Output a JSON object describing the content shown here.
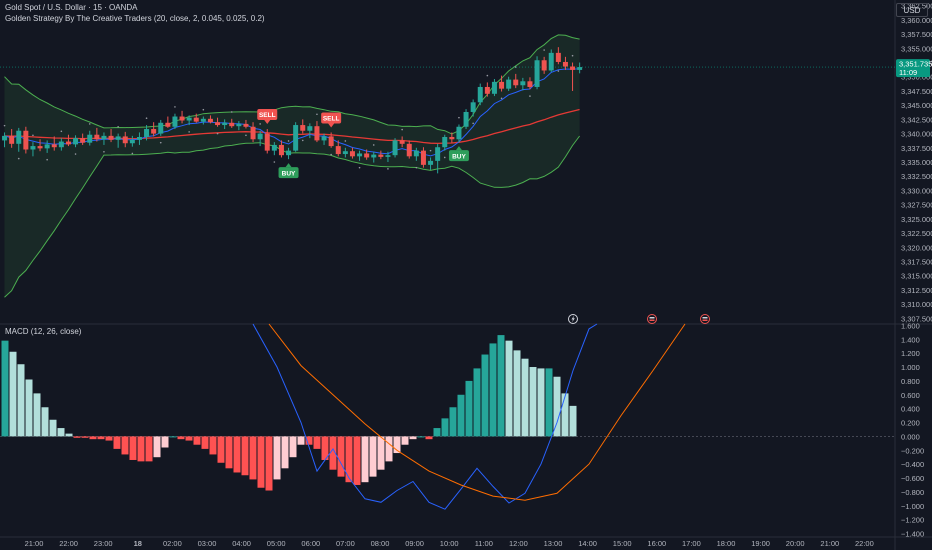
{
  "header": {
    "symbol_title": "Gold Spot / U.S. Dollar · 15 · OANDA",
    "indicator_title": "Golden Strategy By The Creative Traders (20, close, 2, 0.045, 0.025, 0.2)",
    "currency": "USD",
    "macd_title": "MACD (12, 26, close)"
  },
  "colors": {
    "background": "#131722",
    "bull": "#26a69a",
    "bear": "#ef5350",
    "macd_hist_up_strong": "#26a69a",
    "macd_hist_up_weak": "#b2dfdb",
    "macd_hist_down_strong": "#ff5252",
    "macd_hist_down_weak": "#ffcdd2",
    "macd_line": "#2962ff",
    "signal_line": "#ff6d00",
    "band": "#4caf50",
    "price_tag": "#089981"
  },
  "chart_data": [
    {
      "type": "candlestick",
      "title": "Gold Spot / U.S. Dollar · 15 · OANDA",
      "y_ticks": [
        "3,362.500",
        "3,360.000",
        "3,357.500",
        "3,355.000",
        "3,352.500",
        "3,350.000",
        "3,347.500",
        "3,345.000",
        "3,342.500",
        "3,340.000",
        "3,337.500",
        "3,335.000",
        "3,332.500",
        "3,330.000",
        "3,327.500",
        "3,325.000",
        "3,322.500",
        "3,320.000",
        "3,317.500",
        "3,315.000",
        "3,312.500",
        "3,310.000",
        "3,307.500"
      ],
      "ylim": [
        3306.5,
        3363.5
      ],
      "x_ticks": [
        "21:00",
        "22:00",
        "23:00",
        "18",
        "02:00",
        "03:00",
        "04:00",
        "05:00",
        "06:00",
        "07:00",
        "08:00",
        "09:00",
        "10:00",
        "11:00",
        "12:00",
        "13:00",
        "14:00",
        "15:00",
        "16:00",
        "17:00",
        "18:00",
        "19:00",
        "20:00",
        "21:00",
        "22:00"
      ],
      "last_price": "3,351.735",
      "countdown": "11:09",
      "signals": [
        {
          "label": "SELL",
          "bar": 37
        },
        {
          "label": "SELL",
          "bar": 46
        },
        {
          "label": "BUY",
          "bar": 40
        },
        {
          "label": "BUY",
          "bar": 64
        }
      ],
      "candles": [
        {
          "o": 3338.8,
          "h": 3340.2,
          "l": 3337.6,
          "c": 3339.6
        },
        {
          "o": 3339.6,
          "h": 3340.8,
          "l": 3337.5,
          "c": 3338.2
        },
        {
          "o": 3338.2,
          "h": 3341.0,
          "l": 3336.8,
          "c": 3340.5
        },
        {
          "o": 3340.5,
          "h": 3341.2,
          "l": 3336.5,
          "c": 3337.2
        },
        {
          "o": 3337.2,
          "h": 3338.5,
          "l": 3336.0,
          "c": 3337.8
        },
        {
          "o": 3337.8,
          "h": 3339.0,
          "l": 3336.9,
          "c": 3337.4
        },
        {
          "o": 3337.4,
          "h": 3338.8,
          "l": 3336.6,
          "c": 3338.1
        },
        {
          "o": 3338.1,
          "h": 3339.5,
          "l": 3337.0,
          "c": 3337.6
        },
        {
          "o": 3337.6,
          "h": 3339.2,
          "l": 3337.0,
          "c": 3338.6
        },
        {
          "o": 3338.6,
          "h": 3339.8,
          "l": 3337.8,
          "c": 3338.1
        },
        {
          "o": 3338.1,
          "h": 3339.7,
          "l": 3337.6,
          "c": 3339.2
        },
        {
          "o": 3339.2,
          "h": 3340.0,
          "l": 3338.0,
          "c": 3338.4
        },
        {
          "o": 3338.4,
          "h": 3340.5,
          "l": 3337.9,
          "c": 3339.8
        },
        {
          "o": 3339.8,
          "h": 3341.0,
          "l": 3338.6,
          "c": 3339.0
        },
        {
          "o": 3339.0,
          "h": 3340.2,
          "l": 3338.0,
          "c": 3339.6
        },
        {
          "o": 3339.6,
          "h": 3340.8,
          "l": 3338.5,
          "c": 3338.9
        },
        {
          "o": 3338.9,
          "h": 3340.0,
          "l": 3337.5,
          "c": 3339.5
        },
        {
          "o": 3339.5,
          "h": 3340.3,
          "l": 3337.6,
          "c": 3338.3
        },
        {
          "o": 3338.3,
          "h": 3339.6,
          "l": 3337.7,
          "c": 3338.9
        },
        {
          "o": 3338.9,
          "h": 3340.2,
          "l": 3338.0,
          "c": 3339.4
        },
        {
          "o": 3339.4,
          "h": 3341.5,
          "l": 3338.8,
          "c": 3340.8
        },
        {
          "o": 3340.8,
          "h": 3342.0,
          "l": 3339.5,
          "c": 3340.0
        },
        {
          "o": 3340.0,
          "h": 3342.4,
          "l": 3339.6,
          "c": 3341.9
        },
        {
          "o": 3341.9,
          "h": 3343.0,
          "l": 3341.0,
          "c": 3341.2
        },
        {
          "o": 3341.2,
          "h": 3343.5,
          "l": 3340.8,
          "c": 3343.0
        },
        {
          "o": 3343.0,
          "h": 3344.0,
          "l": 3341.8,
          "c": 3342.3
        },
        {
          "o": 3342.3,
          "h": 3343.2,
          "l": 3341.5,
          "c": 3342.8
        },
        {
          "o": 3342.8,
          "h": 3343.5,
          "l": 3341.9,
          "c": 3342.1
        },
        {
          "o": 3342.1,
          "h": 3343.0,
          "l": 3341.6,
          "c": 3342.6
        },
        {
          "o": 3342.6,
          "h": 3343.2,
          "l": 3341.8,
          "c": 3342.0
        },
        {
          "o": 3342.0,
          "h": 3342.8,
          "l": 3341.2,
          "c": 3341.5
        },
        {
          "o": 3341.5,
          "h": 3342.5,
          "l": 3340.8,
          "c": 3341.9
        },
        {
          "o": 3341.9,
          "h": 3342.6,
          "l": 3341.0,
          "c": 3341.3
        },
        {
          "o": 3341.3,
          "h": 3342.2,
          "l": 3340.6,
          "c": 3341.7
        },
        {
          "o": 3341.7,
          "h": 3342.4,
          "l": 3340.9,
          "c": 3341.2
        },
        {
          "o": 3341.2,
          "h": 3342.0,
          "l": 3338.5,
          "c": 3339.0
        },
        {
          "o": 3339.0,
          "h": 3340.5,
          "l": 3337.8,
          "c": 3340.0
        },
        {
          "o": 3340.0,
          "h": 3340.8,
          "l": 3336.5,
          "c": 3337.0
        },
        {
          "o": 3337.0,
          "h": 3338.5,
          "l": 3336.2,
          "c": 3338.0
        },
        {
          "o": 3338.0,
          "h": 3338.8,
          "l": 3335.8,
          "c": 3336.2
        },
        {
          "o": 3336.2,
          "h": 3337.5,
          "l": 3335.5,
          "c": 3337.0
        },
        {
          "o": 3337.0,
          "h": 3342.0,
          "l": 3336.8,
          "c": 3341.5
        },
        {
          "o": 3341.5,
          "h": 3342.5,
          "l": 3340.0,
          "c": 3340.5
        },
        {
          "o": 3340.5,
          "h": 3341.8,
          "l": 3339.2,
          "c": 3341.3
        },
        {
          "o": 3341.3,
          "h": 3342.2,
          "l": 3338.5,
          "c": 3338.8
        },
        {
          "o": 3338.8,
          "h": 3340.0,
          "l": 3338.0,
          "c": 3339.5
        },
        {
          "o": 3339.5,
          "h": 3340.2,
          "l": 3337.5,
          "c": 3337.8
        },
        {
          "o": 3337.8,
          "h": 3338.8,
          "l": 3336.0,
          "c": 3336.4
        },
        {
          "o": 3336.4,
          "h": 3337.5,
          "l": 3335.8,
          "c": 3336.9
        },
        {
          "o": 3336.9,
          "h": 3337.5,
          "l": 3335.6,
          "c": 3336.0
        },
        {
          "o": 3336.0,
          "h": 3337.0,
          "l": 3335.2,
          "c": 3336.5
        },
        {
          "o": 3336.5,
          "h": 3337.2,
          "l": 3335.4,
          "c": 3335.8
        },
        {
          "o": 3335.8,
          "h": 3336.8,
          "l": 3334.9,
          "c": 3336.3
        },
        {
          "o": 3336.3,
          "h": 3337.0,
          "l": 3335.5,
          "c": 3335.9
        },
        {
          "o": 3335.9,
          "h": 3336.8,
          "l": 3335.0,
          "c": 3336.2
        },
        {
          "o": 3336.2,
          "h": 3339.2,
          "l": 3335.8,
          "c": 3338.8
        },
        {
          "o": 3338.8,
          "h": 3339.5,
          "l": 3337.6,
          "c": 3338.2
        },
        {
          "o": 3338.2,
          "h": 3338.8,
          "l": 3335.6,
          "c": 3336.0
        },
        {
          "o": 3336.0,
          "h": 3337.5,
          "l": 3335.2,
          "c": 3337.0
        },
        {
          "o": 3337.0,
          "h": 3337.6,
          "l": 3334.0,
          "c": 3334.5
        },
        {
          "o": 3334.5,
          "h": 3335.8,
          "l": 3333.6,
          "c": 3335.2
        },
        {
          "o": 3335.2,
          "h": 3338.2,
          "l": 3333.0,
          "c": 3337.6
        },
        {
          "o": 3337.6,
          "h": 3339.8,
          "l": 3337.0,
          "c": 3339.4
        },
        {
          "o": 3339.4,
          "h": 3340.2,
          "l": 3338.4,
          "c": 3339.0
        },
        {
          "o": 3339.0,
          "h": 3341.6,
          "l": 3338.5,
          "c": 3341.2
        },
        {
          "o": 3341.2,
          "h": 3344.3,
          "l": 3340.8,
          "c": 3343.8
        },
        {
          "o": 3343.8,
          "h": 3346.0,
          "l": 3343.0,
          "c": 3345.5
        },
        {
          "o": 3345.5,
          "h": 3348.8,
          "l": 3345.0,
          "c": 3348.2
        },
        {
          "o": 3348.2,
          "h": 3349.0,
          "l": 3346.5,
          "c": 3347.0
        },
        {
          "o": 3347.0,
          "h": 3349.6,
          "l": 3346.6,
          "c": 3349.1
        },
        {
          "o": 3349.1,
          "h": 3350.2,
          "l": 3347.4,
          "c": 3347.9
        },
        {
          "o": 3347.9,
          "h": 3350.0,
          "l": 3347.5,
          "c": 3349.5
        },
        {
          "o": 3349.5,
          "h": 3350.5,
          "l": 3348.0,
          "c": 3348.5
        },
        {
          "o": 3348.5,
          "h": 3349.8,
          "l": 3347.6,
          "c": 3349.2
        },
        {
          "o": 3349.2,
          "h": 3349.9,
          "l": 3347.8,
          "c": 3348.2
        },
        {
          "o": 3348.2,
          "h": 3353.6,
          "l": 3347.8,
          "c": 3352.9
        },
        {
          "o": 3352.9,
          "h": 3353.5,
          "l": 3350.5,
          "c": 3351.1
        },
        {
          "o": 3351.1,
          "h": 3354.8,
          "l": 3350.8,
          "c": 3354.2
        },
        {
          "o": 3354.2,
          "h": 3355.2,
          "l": 3352.2,
          "c": 3352.6
        },
        {
          "o": 3352.6,
          "h": 3353.5,
          "l": 3351.2,
          "c": 3351.8
        },
        {
          "o": 3351.8,
          "h": 3352.5,
          "l": 3347.5,
          "c": 3351.2
        },
        {
          "o": 3351.2,
          "h": 3352.5,
          "l": 3350.6,
          "c": 3351.7
        }
      ]
    },
    {
      "type": "bar",
      "title": "MACD (12, 26, close)",
      "y_ticks": [
        "1.600",
        "1.400",
        "1.200",
        "1.000",
        "0.800",
        "0.600",
        "0.400",
        "0.200",
        "0.000",
        "−0.200",
        "−0.400",
        "−0.600",
        "−0.800",
        "−1.000",
        "−1.200",
        "−1.400"
      ],
      "ylim": [
        -1.45,
        1.62
      ],
      "histogram": [
        1.38,
        1.22,
        1.04,
        0.82,
        0.62,
        0.42,
        0.24,
        0.12,
        0.04,
        -0.02,
        -0.02,
        -0.04,
        -0.04,
        -0.06,
        -0.18,
        -0.26,
        -0.34,
        -0.36,
        -0.36,
        -0.3,
        -0.16,
        0.0,
        -0.04,
        -0.06,
        -0.12,
        -0.18,
        -0.26,
        -0.38,
        -0.46,
        -0.52,
        -0.56,
        -0.62,
        -0.74,
        -0.78,
        -0.62,
        -0.46,
        -0.3,
        -0.12,
        -0.12,
        -0.18,
        -0.34,
        -0.48,
        -0.58,
        -0.66,
        -0.7,
        -0.66,
        -0.58,
        -0.48,
        -0.36,
        -0.24,
        -0.12,
        -0.04,
        0.0,
        -0.04,
        0.12,
        0.26,
        0.42,
        0.6,
        0.8,
        0.98,
        1.18,
        1.34,
        1.46,
        1.38,
        1.24,
        1.12,
        1.0,
        0.98,
        0.98,
        0.86,
        0.62,
        0.44
      ],
      "macd_line": [
        [
          31,
          1.62
        ],
        [
          34,
          1.0
        ],
        [
          37,
          0.2
        ],
        [
          39,
          -0.5
        ],
        [
          41,
          -0.18
        ],
        [
          43,
          -0.6
        ],
        [
          45,
          -0.9
        ],
        [
          47,
          -0.95
        ],
        [
          49,
          -0.78
        ],
        [
          51,
          -0.65
        ],
        [
          53,
          -0.95
        ],
        [
          55,
          -1.05
        ],
        [
          57,
          -0.76
        ],
        [
          59,
          -0.46
        ],
        [
          61,
          -0.72
        ],
        [
          63,
          -0.96
        ],
        [
          65,
          -0.82
        ],
        [
          67,
          -0.4
        ],
        [
          69,
          0.2
        ],
        [
          71,
          0.95
        ],
        [
          73,
          1.55
        ],
        [
          74,
          1.62
        ]
      ],
      "signal_line": [
        [
          33,
          1.62
        ],
        [
          37,
          1.02
        ],
        [
          41,
          0.6
        ],
        [
          45,
          0.18
        ],
        [
          49,
          -0.2
        ],
        [
          53,
          -0.5
        ],
        [
          57,
          -0.7
        ],
        [
          61,
          -0.86
        ],
        [
          65,
          -0.92
        ],
        [
          69,
          -0.82
        ],
        [
          73,
          -0.4
        ],
        [
          77,
          0.3
        ],
        [
          81,
          0.95
        ],
        [
          85,
          1.62
        ]
      ]
    }
  ]
}
